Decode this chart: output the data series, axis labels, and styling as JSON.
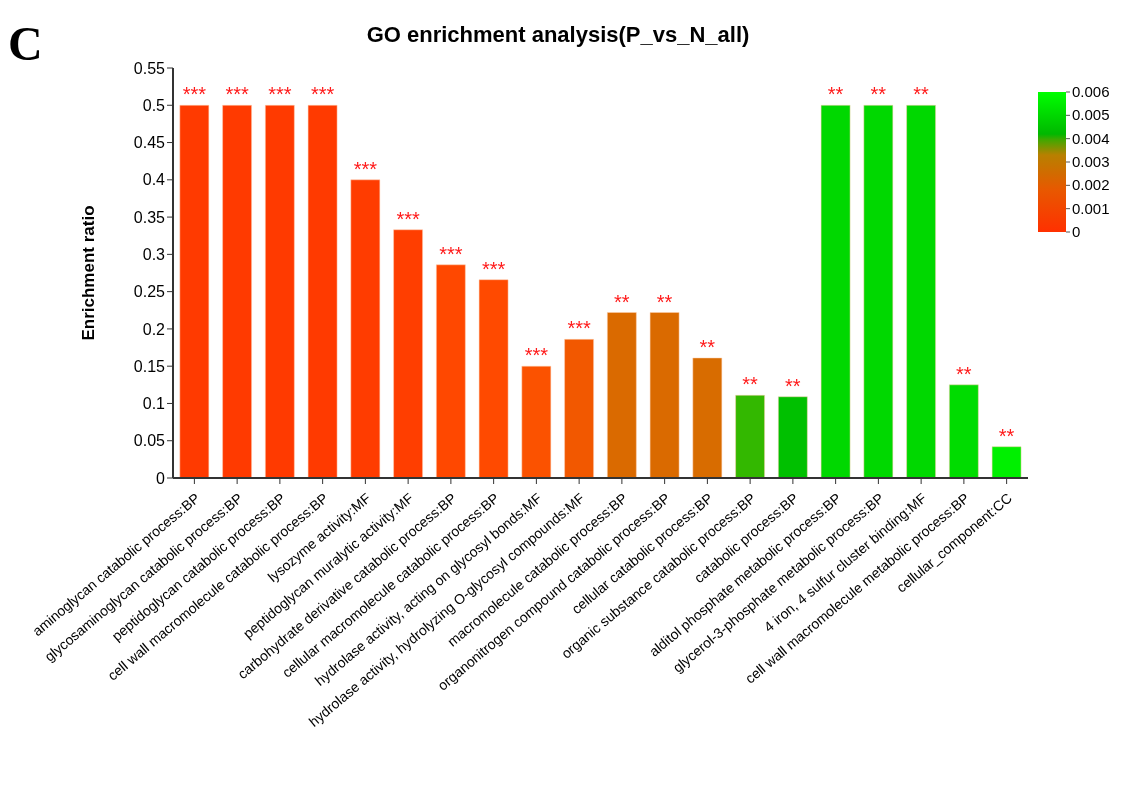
{
  "chart_data": {
    "type": "bar",
    "title": "GO enrichment analysis(P_vs_N_all)",
    "ylabel": "Enrichment ratio",
    "annotations": [
      "C"
    ],
    "categories": [
      "aminoglycan catabolic process:BP",
      "glycosaminoglycan catabolic process:BP",
      "peptidoglycan catabolic process:BP",
      "cell wall macromolecule catabolic process:BP",
      "lysozyme activity:MF",
      "peptidoglycan muralytic activity:MF",
      "carbohydrate derivative catabolic process:BP",
      "cellular macromolecule catabolic process:BP",
      "hydrolase activity, acting on glycosyl bonds:MF",
      "hydrolase activity, hydrolyzing O-glycosyl compounds:MF",
      "macromolecule catabolic process:BP",
      "organonitrogen compound catabolic process:BP",
      "cellular catabolic process:BP",
      "organic substance catabolic process:BP",
      "catabolic process:BP",
      "alditol phosphate metabolic process:BP",
      "glycerol-3-phosphate metabolic process:BP",
      "4 iron, 4 sulfur cluster binding:MF",
      "cell wall macromolecule metabolic process:BP",
      "cellular_component:CC"
    ],
    "values": [
      0.5,
      0.5,
      0.5,
      0.5,
      0.4,
      0.333,
      0.286,
      0.266,
      0.15,
      0.186,
      0.222,
      0.222,
      0.161,
      0.111,
      0.109,
      0.5,
      0.5,
      0.5,
      0.125,
      0.042
    ],
    "colors": [
      "#ff3a00",
      "#ff3a00",
      "#ff3a00",
      "#ff3a00",
      "#ff3c00",
      "#ff3e00",
      "#ff4800",
      "#ff4a00",
      "#fb5200",
      "#f25800",
      "#da6a00",
      "#da6a00",
      "#d86c00",
      "#33b800",
      "#00c000",
      "#00d800",
      "#00d800",
      "#00d800",
      "#00dc00",
      "#00f000"
    ],
    "value_labels": [
      "***",
      "***",
      "***",
      "***",
      "***",
      "***",
      "***",
      "***",
      "***",
      "***",
      "**",
      "**",
      "**",
      "**",
      "**",
      "**",
      "**",
      "**",
      "**",
      "**"
    ],
    "ylim": [
      0,
      0.55
    ],
    "yticks": [
      0,
      0.05,
      0.1,
      0.15,
      0.2,
      0.25,
      0.3,
      0.35,
      0.4,
      0.45,
      0.5,
      0.55
    ],
    "clim": [
      0,
      0.006
    ],
    "cticks": [
      0,
      0.001,
      0.002,
      0.003,
      0.004,
      0.005,
      0.006
    ]
  }
}
